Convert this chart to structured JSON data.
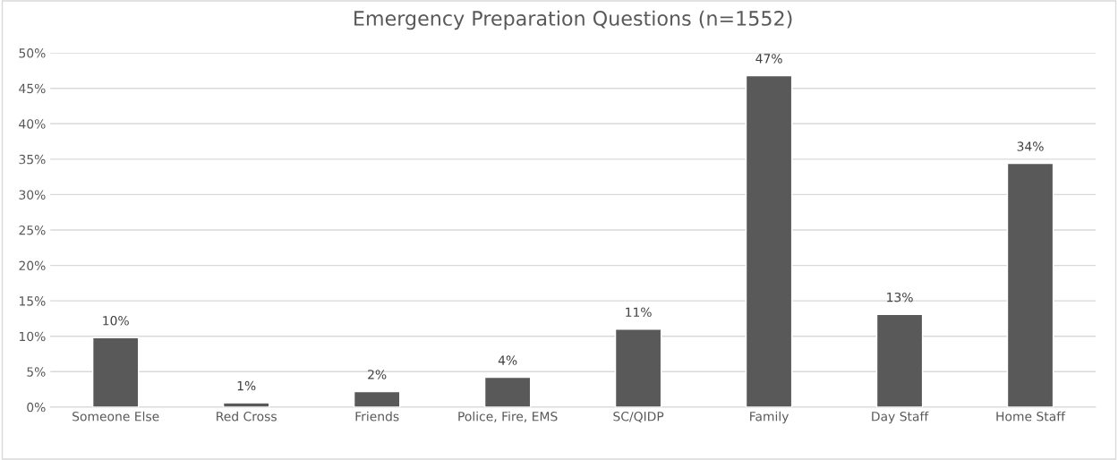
{
  "chart_data": {
    "type": "bar",
    "title": "Emergency Preparation Questions (n=1552)",
    "categories": [
      "Someone Else",
      "Red Cross",
      "Friends",
      "Police, Fire, EMS",
      "SC/QIDP",
      "Family",
      "Day Staff",
      "Home Staff"
    ],
    "values": [
      9.8,
      0.6,
      2.2,
      4.2,
      11.0,
      46.8,
      13.1,
      34.4
    ],
    "value_labels": [
      "10%",
      "1%",
      "2%",
      "4%",
      "11%",
      "47%",
      "13%",
      "34%"
    ],
    "color": "#595959",
    "ylim": [
      0,
      50
    ],
    "yticks": [
      {
        "value": 0,
        "label": "0%"
      },
      {
        "value": 5,
        "label": "5%"
      },
      {
        "value": 10,
        "label": "10%"
      },
      {
        "value": 15,
        "label": "15%"
      },
      {
        "value": 20,
        "label": "20%"
      },
      {
        "value": 25,
        "label": "25%"
      },
      {
        "value": 30,
        "label": "30%"
      },
      {
        "value": 35,
        "label": "35%"
      },
      {
        "value": 40,
        "label": "40%"
      },
      {
        "value": 45,
        "label": "45%"
      },
      {
        "value": 50,
        "label": "50%"
      }
    ],
    "grid": "y"
  }
}
